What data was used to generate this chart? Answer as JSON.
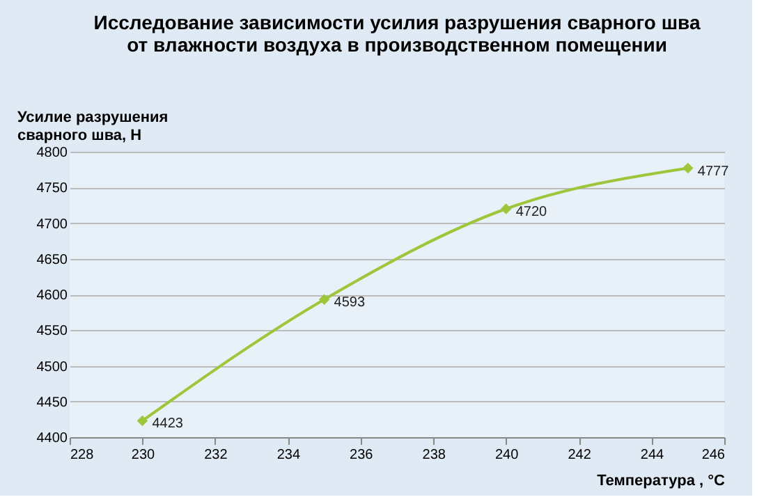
{
  "chart_data": {
    "type": "line",
    "title": "Исследование зависимости усилия разрушения сварного шва\nот влажности воздуха в производственном помещении",
    "xlabel": "Температура , °C",
    "ylabel": "Усилие разрушения\nсварного шва, Н",
    "x": [
      230,
      235,
      240,
      245
    ],
    "series": [
      {
        "color": "#9dc63b",
        "values": [
          4423,
          4593,
          4720,
          4777
        ]
      }
    ],
    "xlim": [
      228,
      246
    ],
    "xticks": [
      228,
      230,
      232,
      234,
      236,
      238,
      240,
      242,
      244,
      246
    ],
    "ylim": [
      4400,
      4800
    ],
    "yticks": [
      4400,
      4450,
      4500,
      4550,
      4600,
      4650,
      4700,
      4750,
      4800
    ],
    "grid": "y",
    "marker": "diamond",
    "line_style": "solid",
    "data_labels": true
  }
}
